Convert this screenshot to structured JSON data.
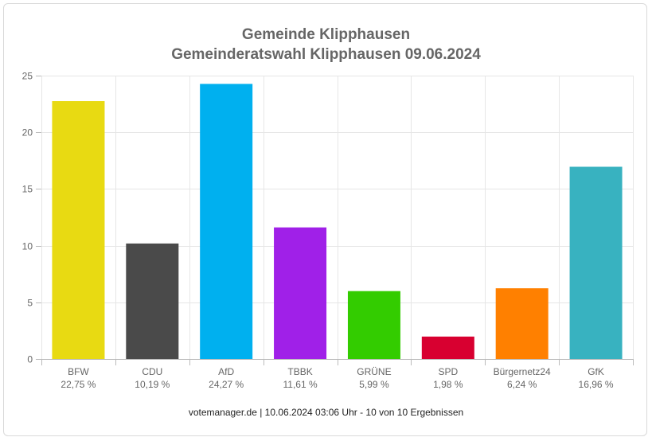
{
  "chart_data": {
    "type": "bar",
    "title": "Gemeinde Klipphausen",
    "subtitle": "Gemeinderatswahl Klipphausen 09.06.2024",
    "categories": [
      "BFW",
      "CDU",
      "AfD",
      "TBBK",
      "GRÜNE",
      "SPD",
      "Bürgernetz24",
      "GfK"
    ],
    "values": [
      22.75,
      10.19,
      24.27,
      11.61,
      5.99,
      1.98,
      6.24,
      16.96
    ],
    "value_labels": [
      "22,75 %",
      "10,19 %",
      "24,27 %",
      "11,61 %",
      "5,99 %",
      "1,98 %",
      "6,24 %",
      "16,96 %"
    ],
    "colors": [
      "#e8da12",
      "#4a4a4a",
      "#00b0ef",
      "#a020e8",
      "#33cc00",
      "#d80030",
      "#ff8000",
      "#38b2c0"
    ],
    "ylim": [
      0,
      25
    ],
    "yticks": [
      0,
      5,
      10,
      15,
      20,
      25
    ],
    "grid": true,
    "xlabel": "",
    "ylabel": ""
  },
  "footer": "votemanager.de | 10.06.2024 03:06 Uhr - 10 von 10 Ergebnissen"
}
